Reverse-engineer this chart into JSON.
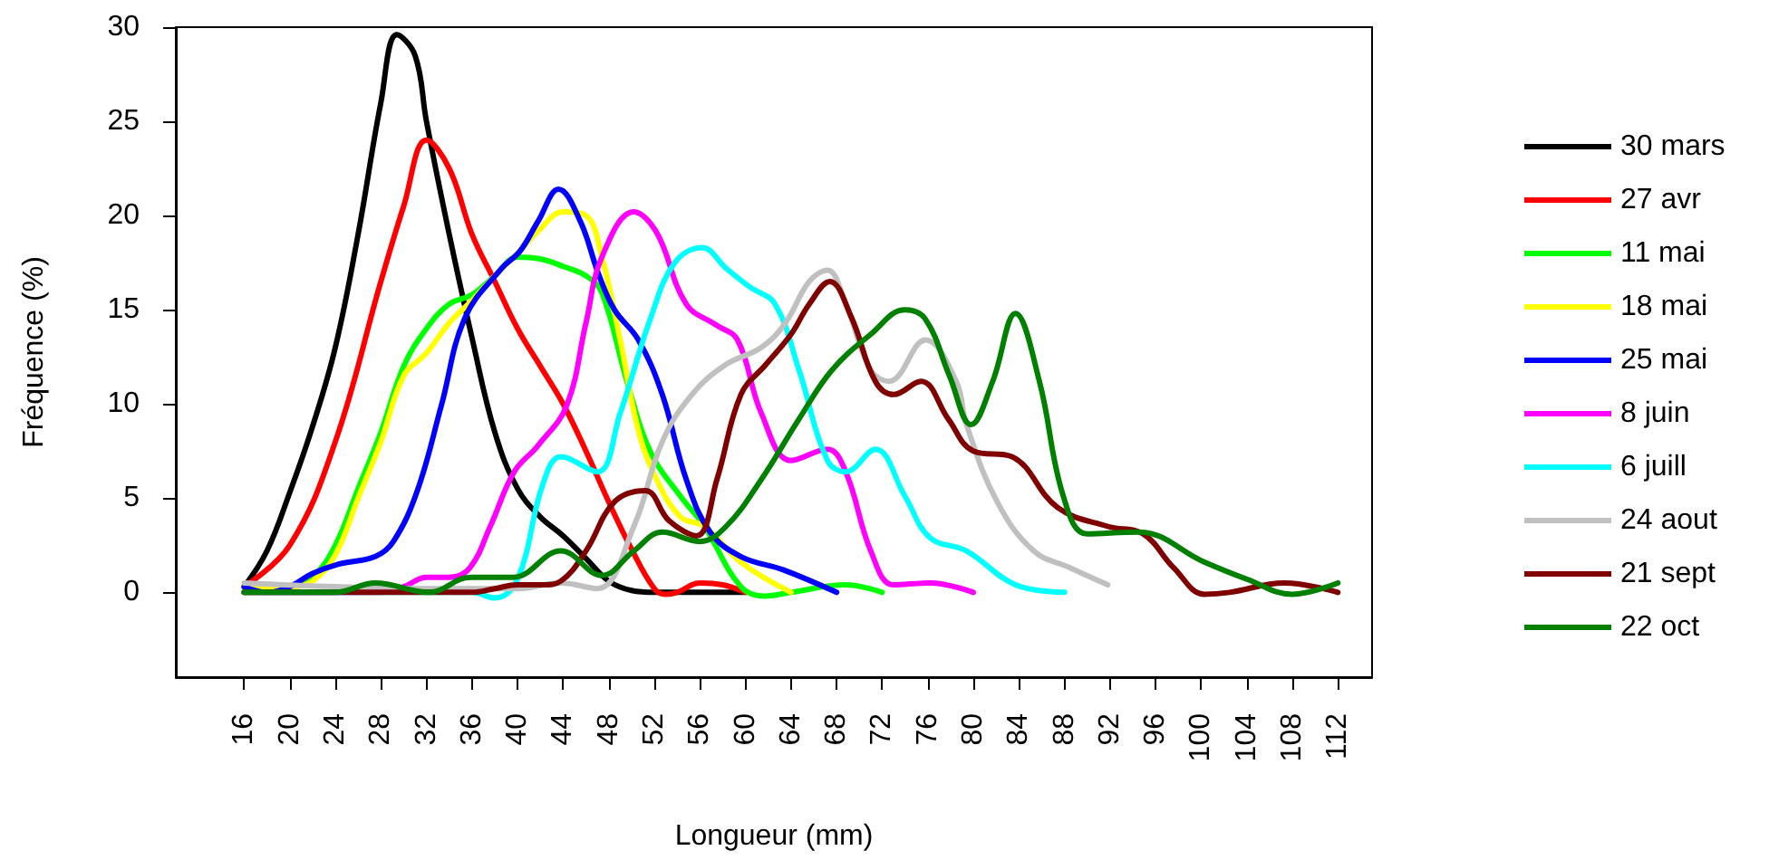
{
  "chart_data": {
    "type": "line",
    "xlabel": "Longueur (mm)",
    "ylabel": "Fréquence (%)",
    "xlim": [
      10,
      115
    ],
    "xticks": [
      16,
      20,
      24,
      28,
      32,
      36,
      40,
      44,
      48,
      52,
      56,
      60,
      64,
      68,
      72,
      76,
      80,
      84,
      88,
      92,
      96,
      100,
      104,
      108,
      112
    ],
    "ylim": [
      -4.5,
      30
    ],
    "yticks": [
      0,
      5,
      10,
      15,
      20,
      25,
      30
    ],
    "grid": false,
    "legend": "right",
    "marker": "none",
    "line_style": "solid",
    "series": [
      {
        "name": "30 mars",
        "color": "#000000",
        "x": [
          16,
          18,
          20,
          22,
          24,
          26,
          28,
          29.4,
          31,
          32,
          34,
          36,
          38,
          40,
          42,
          44,
          46,
          48,
          50,
          52,
          56,
          60
        ],
        "values": [
          0.3,
          2.2,
          5.3,
          8.8,
          13,
          19,
          26,
          29.6,
          28.5,
          25,
          19,
          13.5,
          8.5,
          5.5,
          4,
          3,
          1.8,
          0.6,
          0.1,
          0,
          0,
          0
        ]
      },
      {
        "name": "27 avr",
        "color": "#ff0000",
        "x": [
          16,
          20,
          24,
          28,
          30,
          32,
          34,
          36,
          38,
          40,
          42,
          44,
          46,
          48,
          50,
          52,
          53,
          54,
          56,
          58,
          60
        ],
        "values": [
          0.3,
          2.5,
          8,
          16.5,
          20.5,
          24,
          22.5,
          19,
          16.5,
          14,
          12,
          10,
          7.5,
          4.8,
          2.3,
          0.2,
          -0.1,
          0,
          0.5,
          0.4,
          0
        ]
      },
      {
        "name": "11 mai",
        "color": "#00ff00",
        "x": [
          16,
          20,
          22,
          24,
          26,
          28,
          30,
          32,
          34,
          36,
          38,
          40,
          42,
          44,
          46,
          47.4,
          49.6,
          51.7,
          54.3,
          56.4,
          59.6,
          61.7,
          64,
          68.8,
          72
        ],
        "values": [
          0,
          0.3,
          0.8,
          2.5,
          5.5,
          8.5,
          12,
          14,
          15.3,
          15.8,
          16.8,
          17.8,
          17.7,
          17.3,
          16.8,
          15.9,
          11.2,
          7.4,
          5.1,
          3.5,
          0.3,
          -0.2,
          0,
          0.4,
          0
        ]
      },
      {
        "name": "18 mai",
        "color": "#ffff00",
        "x": [
          16,
          20,
          22,
          24,
          26,
          28,
          30,
          32,
          34,
          36,
          38,
          40,
          42,
          44,
          46,
          47.4,
          49,
          50.6,
          52.2,
          54.3,
          56.4,
          59.6,
          64
        ],
        "values": [
          0.3,
          0.3,
          0.6,
          2,
          5,
          8,
          11.5,
          12.7,
          14.3,
          15.5,
          16.8,
          18,
          19.3,
          20.2,
          20,
          17.8,
          13.4,
          8.6,
          6,
          4,
          3.5,
          1.6,
          0
        ]
      },
      {
        "name": "25 mai",
        "color": "#0000ff",
        "x": [
          16,
          18,
          20,
          22,
          24.3,
          27.5,
          29.1,
          31.2,
          33.3,
          35.4,
          38.6,
          40.2,
          41.8,
          43.6,
          45.5,
          47.1,
          48.5,
          50.6,
          52.7,
          54.8,
          56.9,
          59.6,
          63.3,
          68
        ],
        "values": [
          0.3,
          0,
          0.3,
          1,
          1.5,
          1.9,
          2.7,
          5.4,
          9.9,
          14.6,
          17.2,
          18.1,
          19.7,
          21.4,
          19.7,
          16.9,
          15,
          13.4,
          10.5,
          6,
          3.2,
          1.9,
          1.2,
          0
        ]
      },
      {
        "name": "8 juin",
        "color": "#ff00ff",
        "x": [
          16,
          28,
          30,
          32,
          34,
          35.8,
          37.6,
          39.7,
          41.8,
          44.3,
          46,
          47.4,
          50.2,
          52.2,
          54.8,
          57.4,
          59.3,
          61.4,
          64,
          67.2,
          68.8,
          71,
          73,
          76.2,
          80
        ],
        "values": [
          0,
          0,
          0.3,
          0.8,
          0.8,
          1.3,
          3.5,
          6.4,
          7.8,
          9.9,
          14.3,
          17.8,
          20.2,
          19.1,
          15.3,
          14.2,
          13.4,
          9.5,
          7,
          7.6,
          6.4,
          2.2,
          0.4,
          0.5,
          0
        ]
      },
      {
        "name": "6 juill",
        "color": "#00ffff",
        "x": [
          16,
          36,
          38,
          40,
          42.2,
          43.8,
          47,
          49,
          51.7,
          53.8,
          56.2,
          58.3,
          60.4,
          62.6,
          64.7,
          67.2,
          68.8,
          71.4,
          74,
          76.2,
          79.4,
          83.7,
          88
        ],
        "values": [
          0,
          0,
          -0.3,
          0.7,
          5.7,
          7.2,
          6.4,
          9.5,
          14.6,
          17.5,
          18.3,
          17.2,
          16.2,
          15.3,
          11.8,
          7,
          6.4,
          7.6,
          5.1,
          2.9,
          2.2,
          0.4,
          0
        ]
      },
      {
        "name": "24 aout",
        "color": "#c0c0c0",
        "x": [
          16,
          24,
          32,
          40,
          43.8,
          47,
          50.2,
          52.7,
          55.3,
          58.3,
          61.4,
          63.5,
          65.6,
          67.2,
          68.8,
          71,
          72.6,
          75.8,
          78.5,
          79.4,
          82.1,
          85.3,
          88.5,
          91.8
        ],
        "values": [
          0.5,
          0.3,
          0.2,
          0.2,
          0.5,
          0.2,
          3.5,
          8,
          10.5,
          12.1,
          13,
          14.3,
          16.5,
          17.1,
          15.3,
          11.8,
          11.2,
          13.4,
          11.2,
          8.9,
          4.8,
          2.2,
          1.3,
          0.4
        ]
      },
      {
        "name": "21 sept",
        "color": "#800000",
        "x": [
          16,
          36,
          38,
          40,
          42.2,
          43.8,
          46,
          48.5,
          51.2,
          53.3,
          55.7,
          57.5,
          59.6,
          61.8,
          64,
          65.6,
          67.4,
          69.3,
          71.4,
          73,
          75.4,
          77.8,
          80,
          83.4,
          87.4,
          91.8,
          94.9,
          97.6,
          100.3,
          102.5,
          107.3,
          112
        ],
        "values": [
          0,
          0,
          0.2,
          0.4,
          0.4,
          0.6,
          2.2,
          4.8,
          5.4,
          3.8,
          3,
          6,
          10.5,
          12.1,
          13.7,
          15.3,
          16.5,
          14.6,
          11.2,
          10.5,
          11.2,
          9.2,
          7.5,
          7.2,
          4.5,
          3.5,
          3.1,
          1.3,
          -0.1,
          0,
          0.5,
          0
        ]
      },
      {
        "name": "22 oct",
        "color": "#008000",
        "x": [
          16,
          24,
          27.5,
          32.2,
          35.9,
          39.6,
          43.8,
          47.4,
          50.2,
          52.7,
          56,
          58.3,
          61.4,
          64.7,
          67.6,
          71,
          74,
          75.8,
          77.9,
          79.8,
          81.7,
          83.7,
          85.8,
          87.9,
          90,
          94.5,
          100.3,
          104,
          108,
          112
        ],
        "values": [
          0,
          0,
          0.5,
          0,
          0.8,
          0.8,
          2.2,
          0.9,
          2.2,
          3.2,
          2.7,
          3.5,
          6,
          9.2,
          11.8,
          13.7,
          15,
          14.5,
          11.5,
          8.9,
          11.2,
          14.8,
          11.2,
          5.1,
          3.1,
          3.2,
          1.6,
          0.7,
          -0.1,
          0.5
        ]
      }
    ]
  }
}
